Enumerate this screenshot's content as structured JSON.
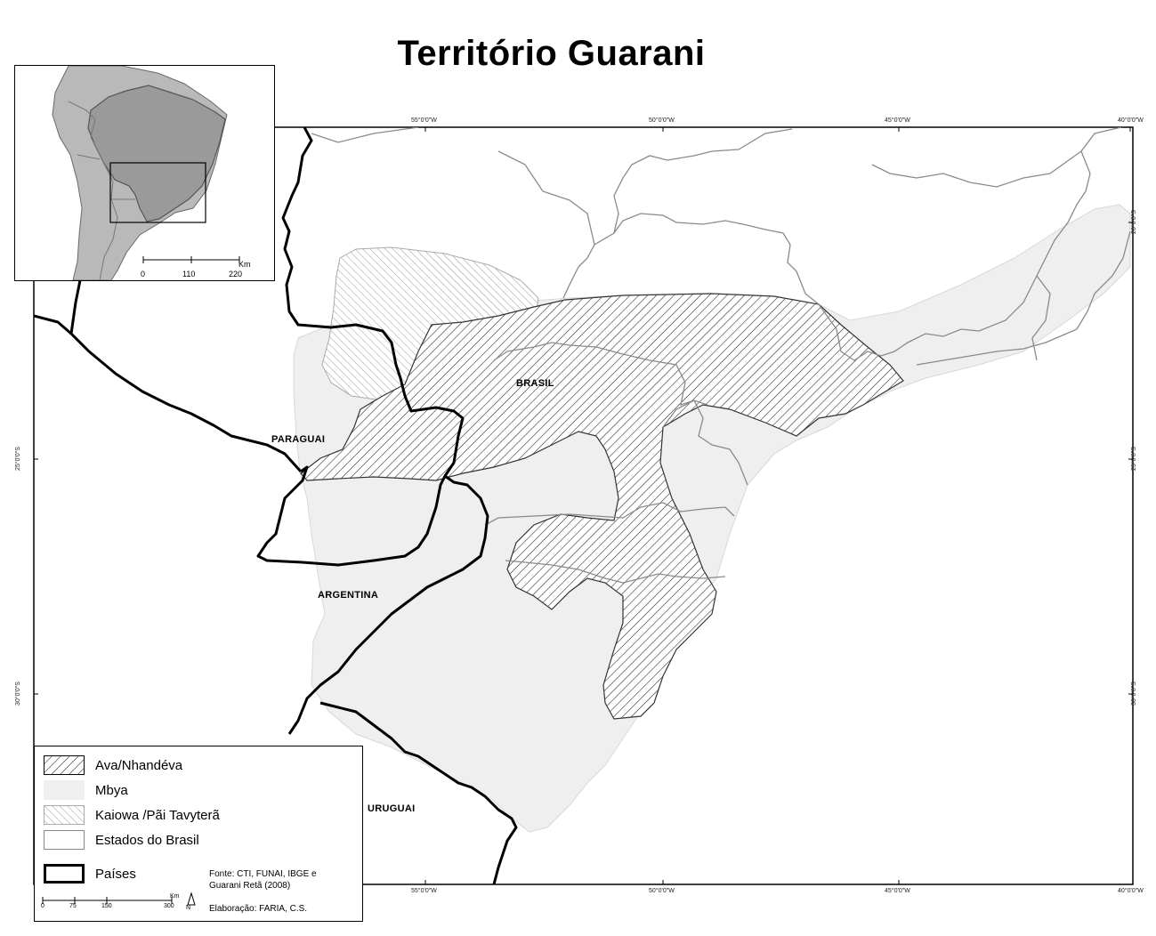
{
  "title": "Território Guarani",
  "coords": {
    "top": [
      "55°0'0\"W",
      "50°0'0\"W",
      "45°0'0\"W",
      "40°0'0\"W"
    ],
    "bottom": [
      "55°0'0\"W",
      "50°0'0\"W",
      "45°0'0\"W",
      "40°0'0\"W"
    ],
    "left": [
      "25°0'0\"S",
      "30°0'0\"S"
    ],
    "right": [
      "20°0'0\"S",
      "25°0'0\"S",
      "30°0'0\"S"
    ]
  },
  "places": {
    "brasil": "BRASIL",
    "paraguai": "PARAGUAI",
    "argentina": "ARGENTINA",
    "uruguai": "URUGUAI"
  },
  "inset": {
    "scale_unit": "Km",
    "scale_ticks": [
      "0",
      "110",
      "220"
    ]
  },
  "legend": {
    "items": [
      {
        "label": "Ava/Nhandéva",
        "style": "dense-hatch"
      },
      {
        "label": "Mbya",
        "style": "light-fill"
      },
      {
        "label": "Kaiowa /Pãi Tavyterã",
        "style": "light-hatch"
      },
      {
        "label": "Estados do Brasil",
        "style": "outline"
      },
      {
        "label": "Países",
        "style": "thick-outline"
      }
    ],
    "source_line1": "Fonte: CTI, FUNAI, IBGE e",
    "source_line2": "Guarani Retã (2008)",
    "credit": "Elaboração: FARIA, C.S.",
    "scale_unit": "Km",
    "scale_ticks": [
      "0",
      "75",
      "150",
      "300"
    ],
    "north": "N"
  },
  "colors": {
    "mbya_fill": "#efefef",
    "inset_land": "#b9b9b9",
    "inset_brazil": "#9a9a9a",
    "state_lines": "#8a8a8a",
    "country_lines": "#000000"
  }
}
